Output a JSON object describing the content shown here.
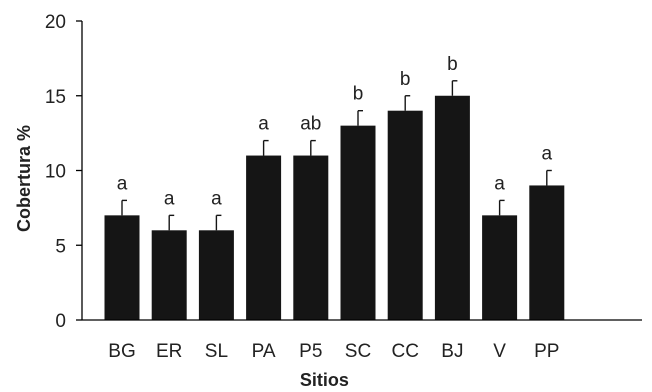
{
  "chart_data": {
    "type": "bar",
    "title": "",
    "xlabel": "Sitios",
    "ylabel": "Cobertura %",
    "ylim": [
      0,
      20
    ],
    "yticks": [
      0,
      5,
      10,
      15,
      20
    ],
    "grid": false,
    "legend": "none",
    "bar_color": "#151515",
    "categories": [
      "BG",
      "ER",
      "SL",
      "PA",
      "P5",
      "SC",
      "CC",
      "BJ",
      "V",
      "PP"
    ],
    "values": [
      7,
      6,
      6,
      11,
      11,
      13,
      14,
      15,
      7,
      9
    ],
    "errors": [
      1,
      1,
      1,
      1,
      1,
      1,
      1,
      1,
      1,
      1
    ],
    "significance_letters": [
      "a",
      "a",
      "a",
      "a",
      "ab",
      "b",
      "b",
      "b",
      "a",
      "a"
    ]
  }
}
